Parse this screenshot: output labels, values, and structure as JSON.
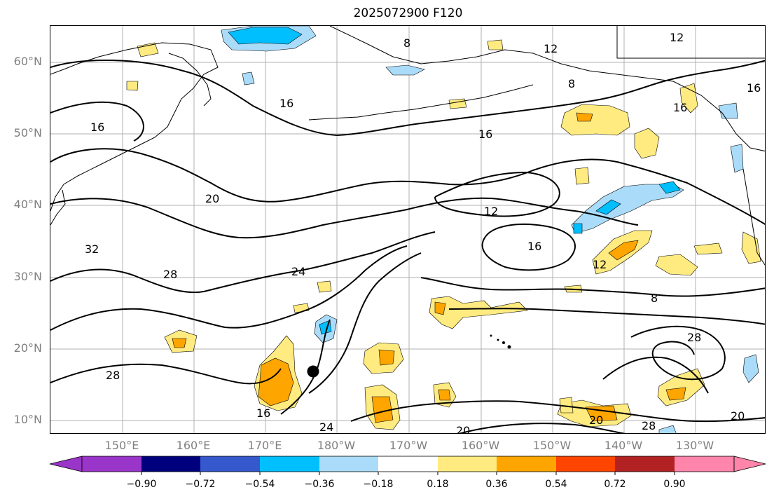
{
  "title": "2025072900 F120",
  "map": {
    "projection": "equirectangular",
    "lon_range": "140°E to 120°W",
    "lat_range": "8°N to 65°N",
    "storm_marker": "filled-black-circle"
  },
  "lat_labels": [
    "60°N",
    "50°N",
    "40°N",
    "30°N",
    "20°N",
    "10°N"
  ],
  "lon_labels": [
    "150°E",
    "160°E",
    "170°E",
    "180°W",
    "170°W",
    "160°W",
    "150°W",
    "140°W",
    "130°W"
  ],
  "contour_labels": [
    "8",
    "12",
    "8",
    "12",
    "16",
    "16",
    "16",
    "16",
    "16",
    "20",
    "12",
    "16",
    "32",
    "28",
    "24",
    "12",
    "8",
    "28",
    "28",
    "16",
    "24",
    "20",
    "20",
    "28",
    "20"
  ],
  "colorbar": {
    "ticks": [
      "−0.90",
      "−0.72",
      "−0.54",
      "−0.36",
      "−0.18",
      "0.18",
      "0.36",
      "0.54",
      "0.72",
      "0.90"
    ],
    "colors": [
      "#9a35c9",
      "#00007e",
      "#3558cc",
      "#00bfff",
      "#aadcfa",
      "#ffffff",
      "#ffeb80",
      "#ffa500",
      "#ff4500",
      "#b22222",
      "#ff85aa"
    ]
  },
  "shading_colors": {
    "light_yellow": "#ffeb80",
    "orange": "#ffa500",
    "light_blue": "#aadcfa",
    "blue": "#00bfff"
  }
}
